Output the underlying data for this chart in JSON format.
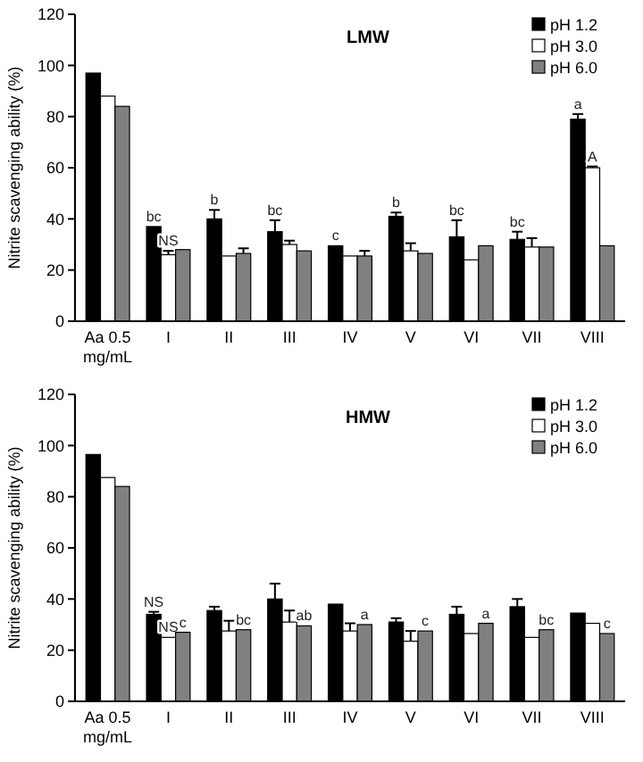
{
  "chart_data": [
    {
      "type": "bar",
      "title": "LMW",
      "ylabel": "Nitrite scavenging ability (%)",
      "categories": [
        "Aa 0.5\nmg/mL",
        "I",
        "II",
        "III",
        "IV",
        "V",
        "VI",
        "VII",
        "VIII"
      ],
      "ylim": [
        0,
        120
      ],
      "yticks": [
        0,
        20,
        40,
        60,
        80,
        100,
        120
      ],
      "legend": "top right",
      "grid": false,
      "series": [
        {
          "name": "pH 1.2",
          "color": "#000000",
          "values": [
            97,
            37,
            40,
            35,
            29.5,
            41,
            33,
            32,
            79
          ],
          "errors": [
            null,
            null,
            [
              40,
              43.5
            ],
            [
              35,
              39.5
            ],
            null,
            [
              41,
              42.5
            ],
            [
              33,
              39.5
            ],
            [
              32,
              35
            ],
            [
              79,
              81
            ]
          ],
          "value_labels": [
            null,
            "bc",
            "b",
            "bc",
            "c",
            "b",
            "bc",
            "bc",
            "a"
          ]
        },
        {
          "name": "pH 3.0",
          "color": "#ffffff",
          "values": [
            88,
            26,
            25.5,
            30,
            25.5,
            27.5,
            24,
            29,
            60
          ],
          "errors": [
            null,
            [
              26,
              27.5
            ],
            null,
            [
              30,
              31.5
            ],
            null,
            [
              27.5,
              30.5
            ],
            null,
            [
              29,
              32.5
            ],
            [
              60,
              60.5
            ]
          ],
          "value_labels": [
            null,
            "NS",
            null,
            null,
            null,
            null,
            null,
            null,
            "A"
          ]
        },
        {
          "name": "pH 6.0",
          "color": "#808080",
          "values": [
            84,
            28,
            26.5,
            27.5,
            25.5,
            26.5,
            29.5,
            29,
            29.5
          ],
          "errors": [
            null,
            null,
            [
              26.5,
              28.5
            ],
            null,
            [
              25.5,
              27.5
            ],
            null,
            null,
            null,
            null
          ]
        }
      ]
    },
    {
      "type": "bar",
      "title": "HMW",
      "ylabel": "Nitrite scavenging ability (%)",
      "categories": [
        "Aa 0.5\nmg/mL",
        "I",
        "II",
        "III",
        "IV",
        "V",
        "VI",
        "VII",
        "VIII"
      ],
      "ylim": [
        0,
        120
      ],
      "yticks": [
        0,
        20,
        40,
        60,
        80,
        100,
        120
      ],
      "legend": "top right",
      "grid": false,
      "series": [
        {
          "name": "pH 1.2",
          "color": "#000000",
          "values": [
            96.5,
            34,
            35.5,
            40,
            38,
            31,
            34,
            37,
            34.5
          ],
          "errors": [
            null,
            [
              34,
              35
            ],
            [
              35.5,
              37
            ],
            [
              40,
              46
            ],
            null,
            [
              31,
              32.5
            ],
            [
              34,
              37
            ],
            [
              37,
              40
            ],
            null
          ],
          "value_labels": [
            null,
            "NS",
            null,
            null,
            null,
            null,
            null,
            null,
            null
          ]
        },
        {
          "name": "pH 3.0",
          "color": "#ffffff",
          "values": [
            87.5,
            25,
            27.5,
            31,
            27.5,
            23.5,
            26.5,
            25,
            30.5
          ],
          "errors": [
            null,
            null,
            [
              27.5,
              31.5
            ],
            [
              31,
              35.5
            ],
            [
              27.5,
              30.5
            ],
            [
              23.5,
              27.5
            ],
            null,
            null,
            null
          ],
          "value_labels": [
            null,
            "NS",
            null,
            null,
            null,
            null,
            null,
            null,
            null
          ]
        },
        {
          "name": "pH 6.0",
          "color": "#808080",
          "values": [
            84,
            27,
            28,
            29.5,
            30,
            27.5,
            30.5,
            28,
            26.5
          ],
          "value_labels": [
            null,
            "c",
            "bc",
            "ab",
            "a",
            "c",
            "a",
            "bc",
            "c"
          ]
        }
      ]
    }
  ]
}
